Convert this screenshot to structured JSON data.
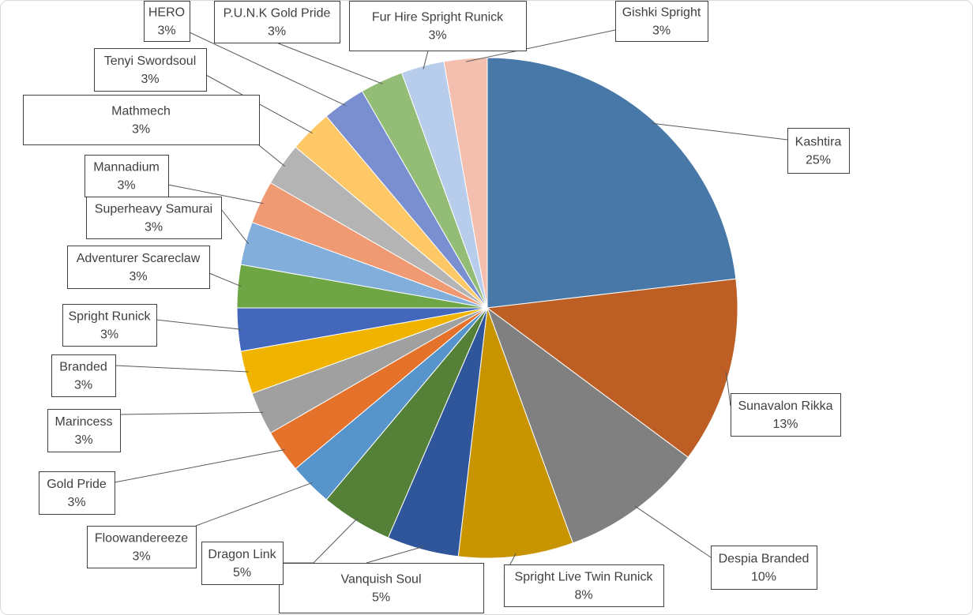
{
  "chart_data": {
    "type": "pie",
    "title": "",
    "slices": [
      {
        "label": "Kashtira",
        "value": 25,
        "pct_label": "25%",
        "color": "#4878a8"
      },
      {
        "label": "Sunavalon Rikka",
        "value": 13,
        "pct_label": "13%",
        "color": "#bd5f24"
      },
      {
        "label": "Despia Branded",
        "value": 10,
        "pct_label": "10%",
        "color": "#808080"
      },
      {
        "label": "Spright Live Twin Runick",
        "value": 8,
        "pct_label": "8%",
        "color": "#c89500"
      },
      {
        "label": "Vanquish Soul",
        "value": 5,
        "pct_label": "5%",
        "color": "#2f559a"
      },
      {
        "label": "Dragon Link",
        "value": 5,
        "pct_label": "5%",
        "color": "#548038"
      },
      {
        "label": "Floowandereeze",
        "value": 3,
        "pct_label": "3%",
        "color": "#5794cb"
      },
      {
        "label": "Gold Pride",
        "value": 3,
        "pct_label": "3%",
        "color": "#e5722a"
      },
      {
        "label": "Marincess",
        "value": 3,
        "pct_label": "3%",
        "color": "#a0a0a0"
      },
      {
        "label": "Branded",
        "value": 3,
        "pct_label": "3%",
        "color": "#f0b400"
      },
      {
        "label": "Spright Runick",
        "value": 3,
        "pct_label": "3%",
        "color": "#4368bb"
      },
      {
        "label": "Adventurer Scareclaw",
        "value": 3,
        "pct_label": "3%",
        "color": "#6ea545"
      },
      {
        "label": "Superheavy Samurai",
        "value": 3,
        "pct_label": "3%",
        "color": "#82aedb"
      },
      {
        "label": "Mannadium",
        "value": 3,
        "pct_label": "3%",
        "color": "#ef9a72"
      },
      {
        "label": "Mathmech",
        "value": 3,
        "pct_label": "3%",
        "color": "#b4b4b4"
      },
      {
        "label": "Tenyi Swordsoul",
        "value": 3,
        "pct_label": "3%",
        "color": "#fec866"
      },
      {
        "label": "HERO",
        "value": 3,
        "pct_label": "3%",
        "color": "#7a8fd0"
      },
      {
        "label": "P.U.N.K Gold Pride",
        "value": 3,
        "pct_label": "3%",
        "color": "#93bd77"
      },
      {
        "label": "Fur Hire Spright Runick",
        "value": 3,
        "pct_label": "3%",
        "color": "#b8cceb"
      },
      {
        "label": "Gishki Spright",
        "value": 3,
        "pct_label": "3%",
        "color": "#f4bfae"
      }
    ],
    "legend": "none",
    "data_labels": "callouts"
  }
}
